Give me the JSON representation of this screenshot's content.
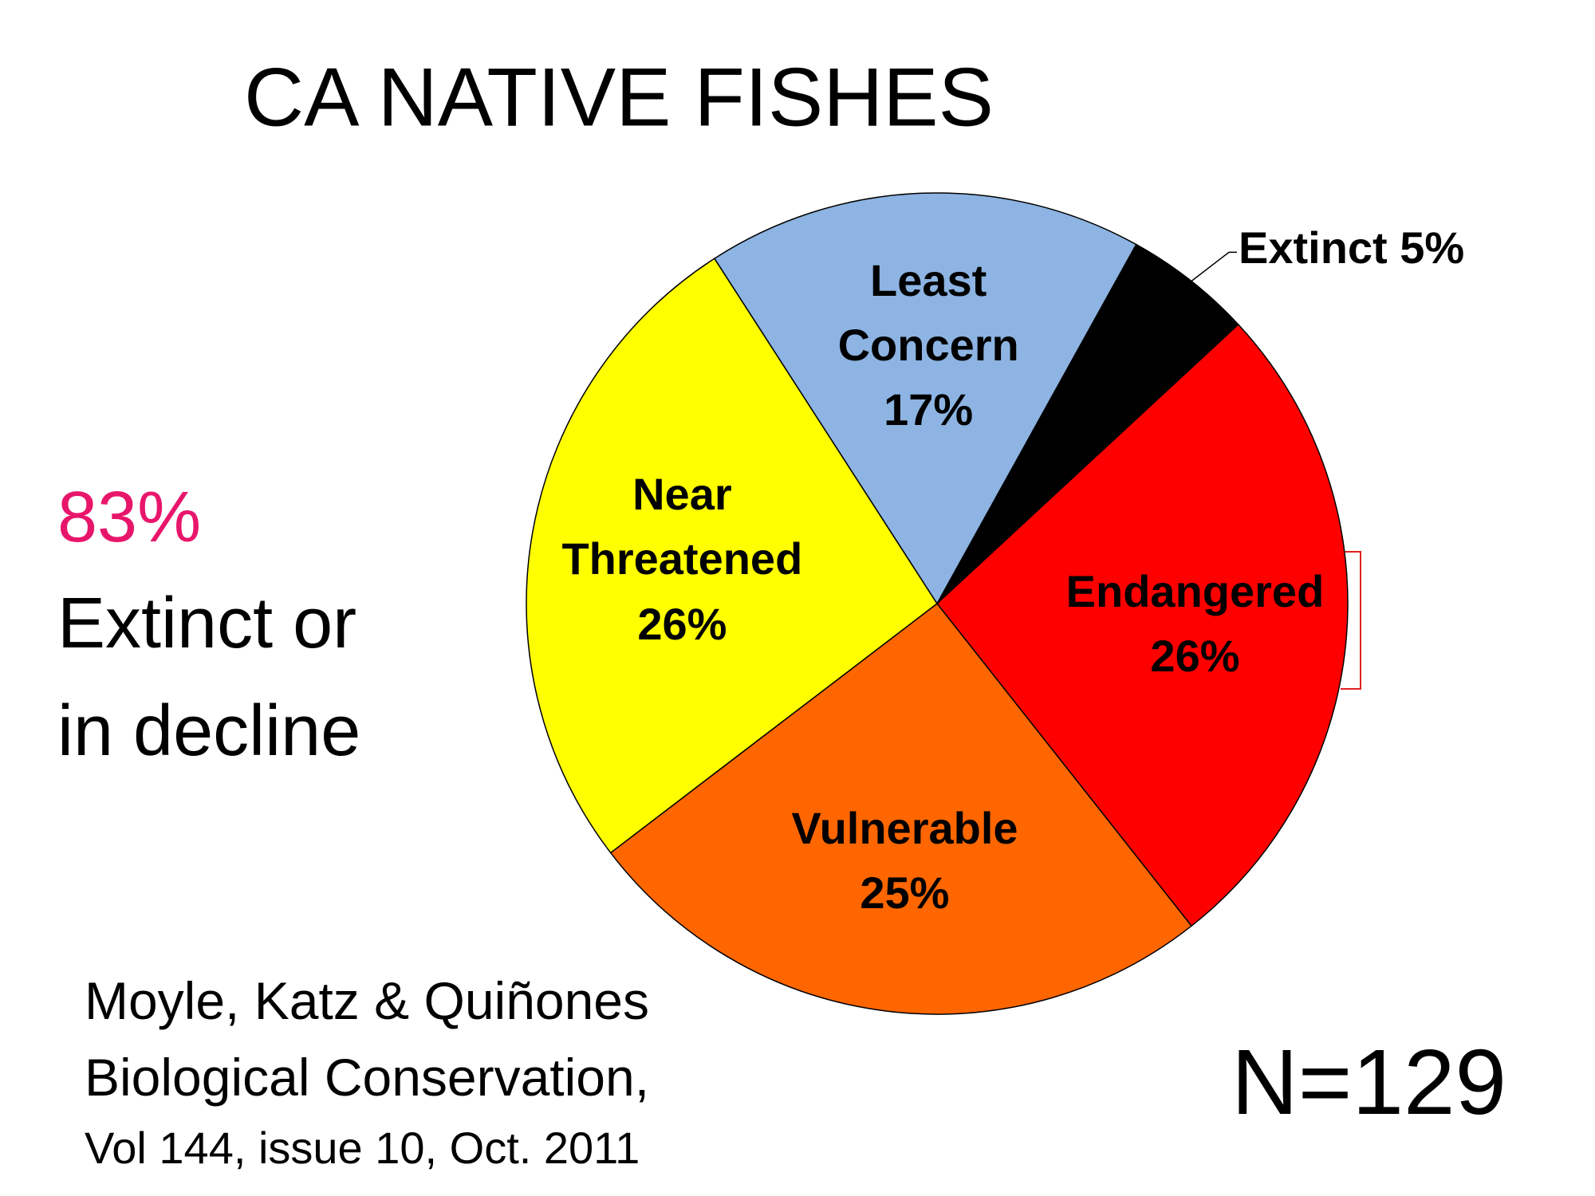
{
  "chart_data": {
    "type": "pie",
    "title": "CA NATIVE FISHES",
    "categories": [
      "Extinct",
      "Endangered",
      "Vulnerable",
      "Near Threatened",
      "Least Concern"
    ],
    "values": [
      5,
      26,
      25,
      26,
      17
    ],
    "value_labels": [
      "5%",
      "26%",
      "25%",
      "26%",
      "17%"
    ],
    "colors": [
      "#000000",
      "#ff0000",
      "#ff6600",
      "#ffff00",
      "#8db4e2"
    ],
    "highlight": "83%",
    "highlight_text": [
      "Extinct or",
      "in decline"
    ],
    "citation": [
      "Moyle, Katz & Quiñones",
      "Biological Conservation,",
      "Vol 144, issue 10, Oct. 2011"
    ],
    "sample_size": "N=129"
  }
}
